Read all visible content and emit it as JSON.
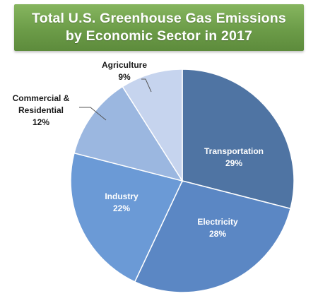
{
  "title": {
    "line1": "Total U.S. Greenhouse Gas Emissions",
    "line2": "by Economic Sector in 2017"
  },
  "chart_data": {
    "type": "pie",
    "title": "Total U.S. Greenhouse Gas Emissions by Economic Sector in 2017",
    "slices": [
      {
        "label": "Transportation",
        "value": 29,
        "display": "29%",
        "color": "#4f74a3",
        "label_lines": [
          "Transportation"
        ],
        "label_color": "#ffffff"
      },
      {
        "label": "Electricity",
        "value": 28,
        "display": "28%",
        "color": "#5b87c4",
        "label_lines": [
          "Electricity"
        ],
        "label_color": "#ffffff"
      },
      {
        "label": "Industry",
        "value": 22,
        "display": "22%",
        "color": "#6b9ad6",
        "label_lines": [
          "Industry"
        ],
        "label_color": "#ffffff"
      },
      {
        "label": "Commercial & Residential",
        "value": 12,
        "display": "12%",
        "color": "#9bb7e0",
        "label_lines": [
          "Commercial &",
          "Residential"
        ],
        "label_color": "#1a1a1a"
      },
      {
        "label": "Agriculture",
        "value": 9,
        "display": "9%",
        "color": "#c6d4ee",
        "label_lines": [
          "Agriculture"
        ],
        "label_color": "#1a1a1a"
      }
    ]
  }
}
